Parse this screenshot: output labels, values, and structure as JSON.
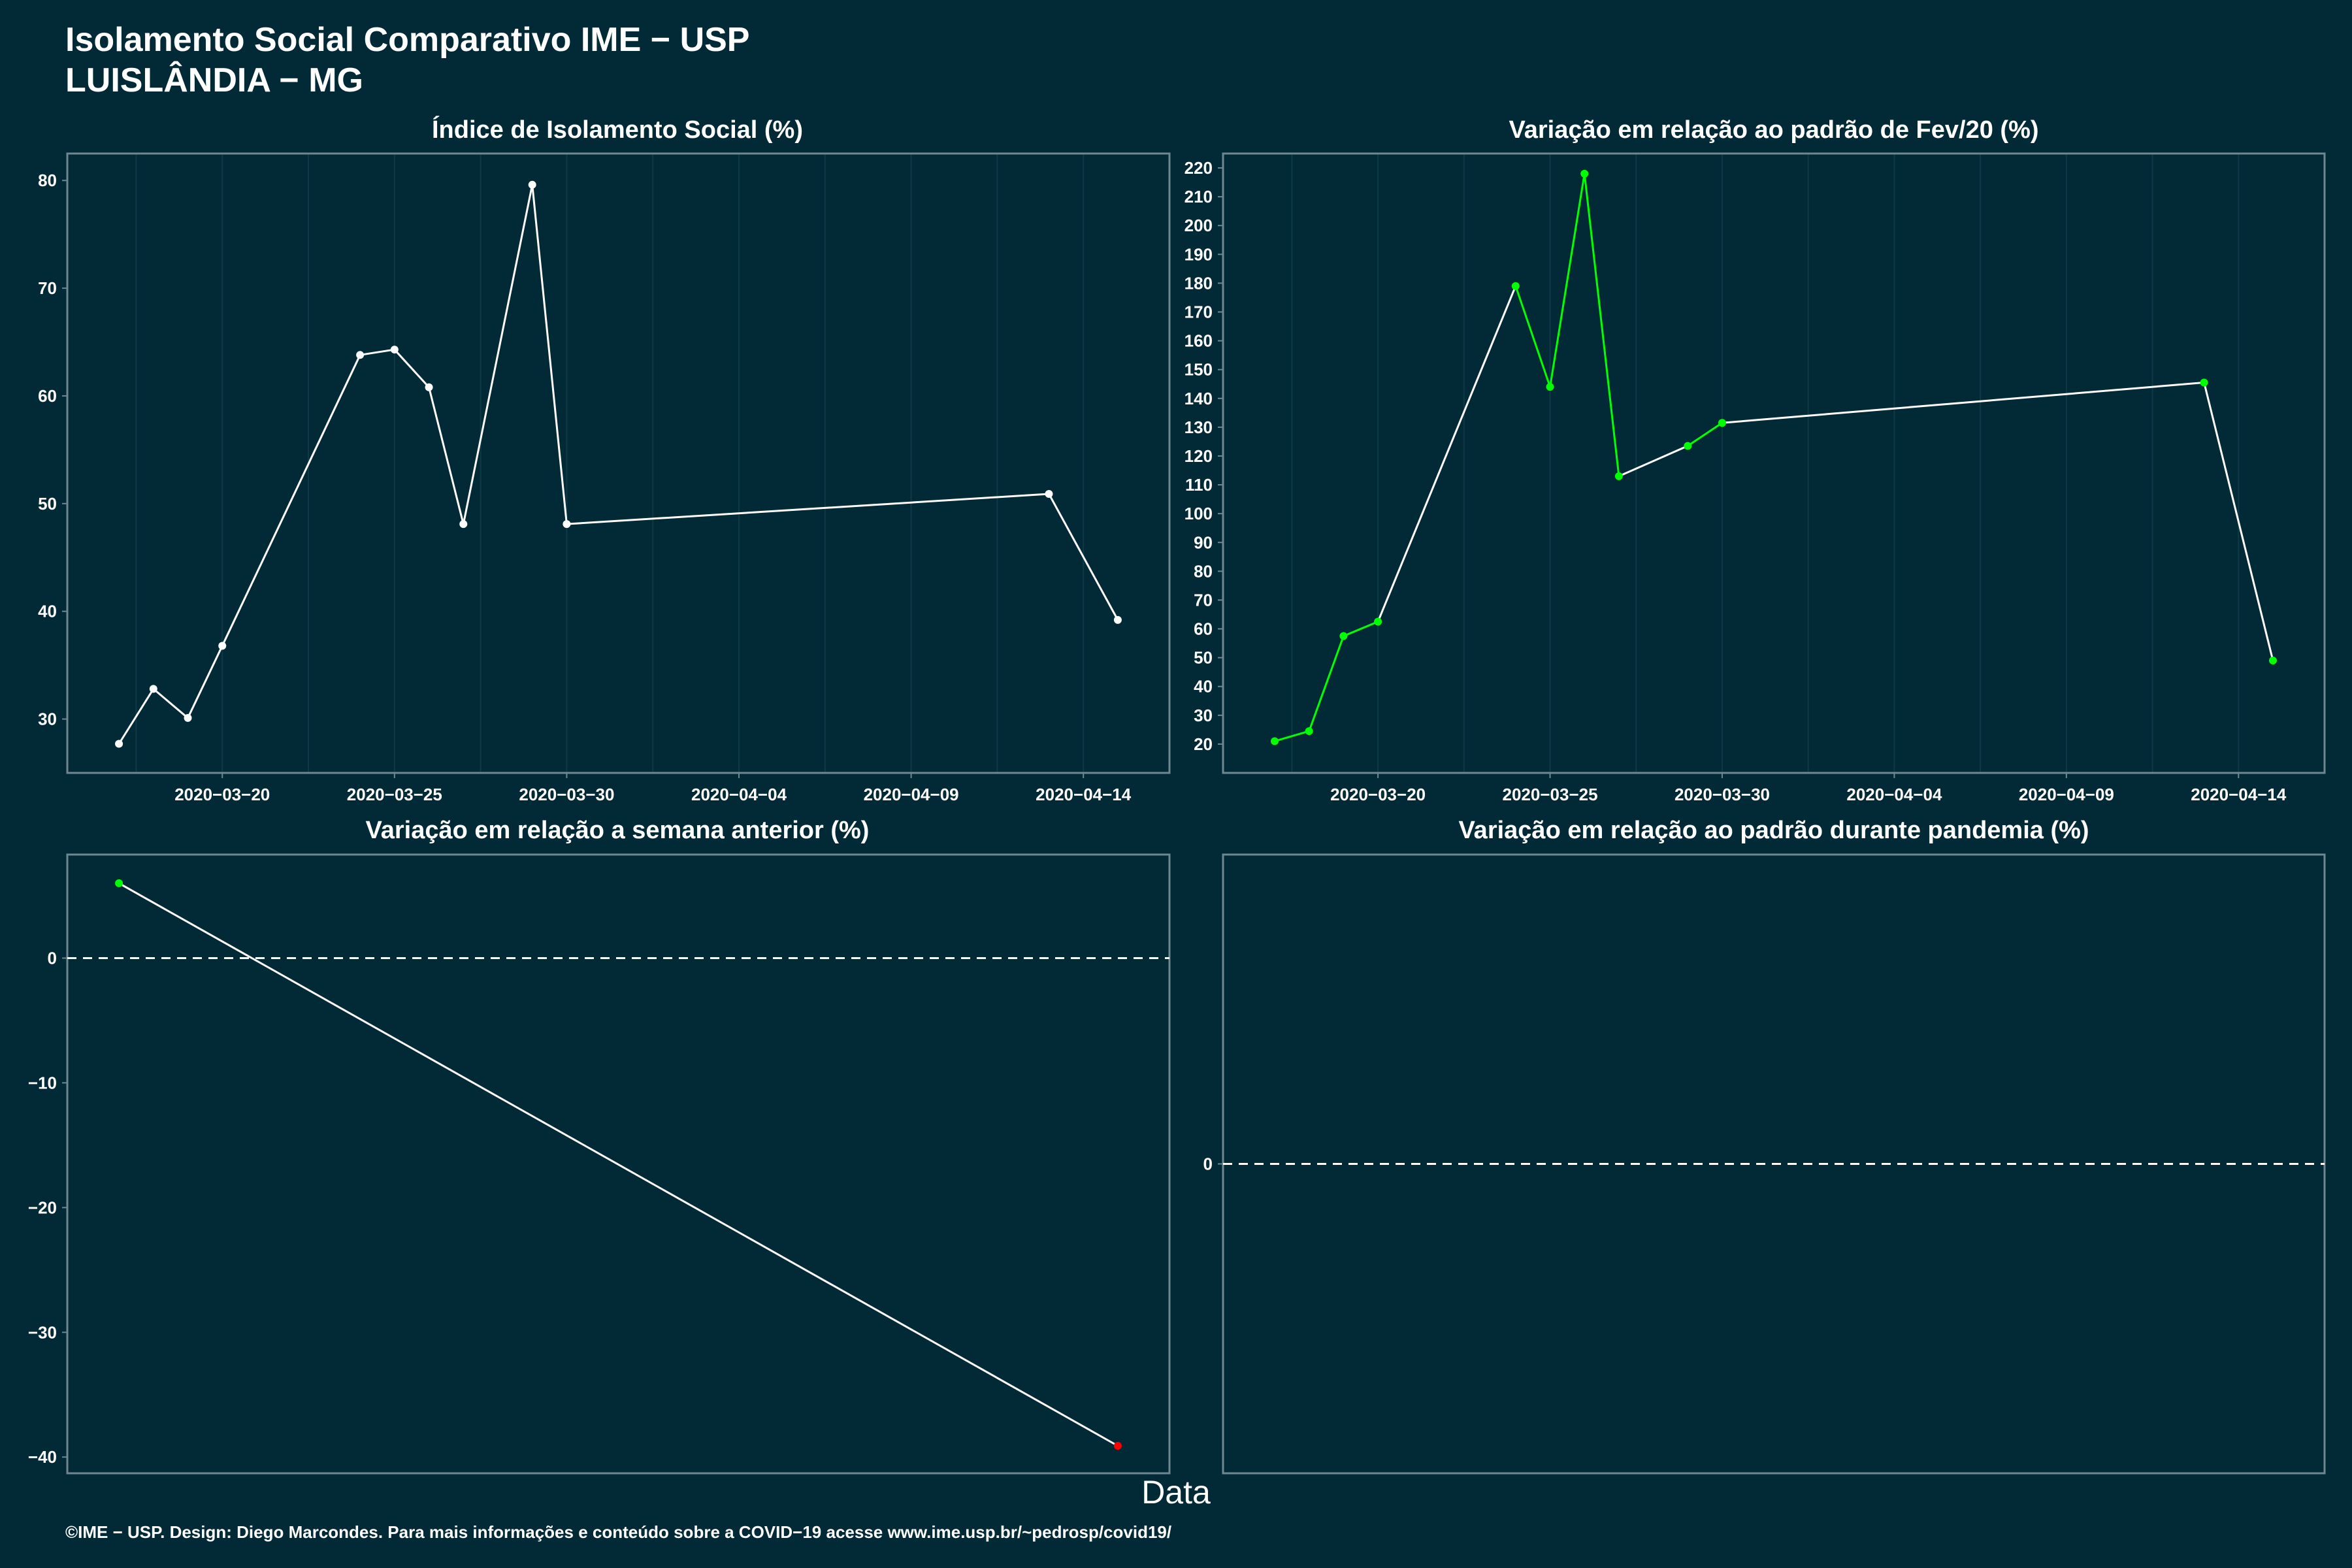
{
  "header": {
    "title": "Isolamento Social Comparativo IME − USP",
    "subtitle": "LUISLÂNDIA − MG"
  },
  "xlabel": "Data",
  "footer": "©IME − USP. Design: Diego Marcondes. Para mais informações e conteúdo sobre a COVID−19 acesse www.ime.usp.br/~pedrosp/covid19/",
  "colors": {
    "background": "#022a36",
    "white": "#ffffff",
    "green": "#00ff00",
    "red": "#ff0000",
    "panel_border": "#6e8790",
    "grid": "#0d3a46"
  },
  "chart_data": [
    {
      "type": "line",
      "title": "Índice de Isolamento Social (%)",
      "x_axis": "date",
      "xlim": [
        "2020-03-15T12:00",
        "2020-04-16T12:00"
      ],
      "x_ticks": [
        "2020-03-20",
        "2020-03-25",
        "2020-03-30",
        "2020-04-04",
        "2020-04-09",
        "2020-04-14"
      ],
      "ylim": [
        25,
        82.5
      ],
      "y_ticks": [
        30,
        40,
        50,
        60,
        70,
        80
      ],
      "vertical_grid": true,
      "points": [
        {
          "x": "2020-03-17",
          "y": 27.7,
          "color": "#ffffff"
        },
        {
          "x": "2020-03-18",
          "y": 32.8,
          "color": "#ffffff"
        },
        {
          "x": "2020-03-19",
          "y": 30.1,
          "color": "#ffffff"
        },
        {
          "x": "2020-03-20",
          "y": 36.8,
          "color": "#ffffff"
        },
        {
          "x": "2020-03-24",
          "y": 63.8,
          "color": "#ffffff"
        },
        {
          "x": "2020-03-25",
          "y": 64.3,
          "color": "#ffffff"
        },
        {
          "x": "2020-03-26",
          "y": 60.8,
          "color": "#ffffff"
        },
        {
          "x": "2020-03-27",
          "y": 48.1,
          "color": "#ffffff"
        },
        {
          "x": "2020-03-29",
          "y": 79.6,
          "color": "#ffffff"
        },
        {
          "x": "2020-03-30",
          "y": 48.1,
          "color": "#ffffff"
        },
        {
          "x": "2020-04-13",
          "y": 50.9,
          "color": "#ffffff"
        },
        {
          "x": "2020-04-15",
          "y": 39.2,
          "color": "#ffffff"
        }
      ],
      "segment_colors": [
        "#ffffff",
        "#ffffff",
        "#ffffff",
        "#ffffff",
        "#ffffff",
        "#ffffff",
        "#ffffff",
        "#ffffff",
        "#ffffff",
        "#ffffff",
        "#ffffff"
      ]
    },
    {
      "type": "line",
      "title": "Variação em relação ao padrão de Fev/20 (%)",
      "x_axis": "date",
      "xlim": [
        "2020-03-15T12:00",
        "2020-04-16T12:00"
      ],
      "x_ticks": [
        "2020-03-20",
        "2020-03-25",
        "2020-03-30",
        "2020-04-04",
        "2020-04-09",
        "2020-04-14"
      ],
      "ylim": [
        10,
        225
      ],
      "y_ticks": [
        20,
        30,
        40,
        50,
        60,
        70,
        80,
        90,
        100,
        110,
        120,
        130,
        140,
        150,
        160,
        170,
        180,
        190,
        200,
        210,
        220
      ],
      "vertical_grid": true,
      "points": [
        {
          "x": "2020-03-17",
          "y": 21,
          "color": "#00ff00"
        },
        {
          "x": "2020-03-18",
          "y": 24.5,
          "color": "#00ff00"
        },
        {
          "x": "2020-03-19",
          "y": 57.5,
          "color": "#00ff00"
        },
        {
          "x": "2020-03-20",
          "y": 62.5,
          "color": "#00ff00"
        },
        {
          "x": "2020-03-24",
          "y": 179,
          "color": "#00ff00"
        },
        {
          "x": "2020-03-25",
          "y": 144,
          "color": "#00ff00"
        },
        {
          "x": "2020-03-26",
          "y": 218,
          "color": "#00ff00"
        },
        {
          "x": "2020-03-27",
          "y": 113,
          "color": "#00ff00"
        },
        {
          "x": "2020-03-29",
          "y": 123.5,
          "color": "#00ff00"
        },
        {
          "x": "2020-03-30",
          "y": 131.5,
          "color": "#00ff00"
        },
        {
          "x": "2020-04-13",
          "y": 145.5,
          "color": "#00ff00"
        },
        {
          "x": "2020-04-15",
          "y": 49,
          "color": "#00ff00"
        }
      ],
      "segment_colors": [
        "#00ff00",
        "#00ff00",
        "#00ff00",
        "#ffffff",
        "#00ff00",
        "#00ff00",
        "#00ff00",
        "#ffffff",
        "#00ff00",
        "#ffffff",
        "#ffffff"
      ]
    },
    {
      "type": "line",
      "title": "Variação em relação a semana anterior (%)",
      "x_axis": "date",
      "xlim": [
        "2020-03-15T12:00",
        "2020-04-16T12:00"
      ],
      "x_ticks": [],
      "ylim": [
        -41.3,
        8.3
      ],
      "y_ticks": [
        -40,
        -30,
        -20,
        -10,
        0
      ],
      "zero_line": true,
      "vertical_grid": false,
      "points": [
        {
          "x": "2020-03-17",
          "y": 6,
          "color": "#00ff00"
        },
        {
          "x": "2020-04-15",
          "y": -39.1,
          "color": "#ff0000"
        }
      ],
      "segment_colors": [
        "#ffffff"
      ]
    },
    {
      "type": "line",
      "title": "Variação em relação ao padrão durante pandemia (%)",
      "x_axis": "date",
      "xlim": [
        "2020-03-15T12:00",
        "2020-04-16T12:00"
      ],
      "x_ticks": [],
      "ylim": [
        -1,
        1
      ],
      "y_ticks": [
        0
      ],
      "zero_line": true,
      "vertical_grid": false,
      "points": [],
      "segment_colors": []
    }
  ]
}
